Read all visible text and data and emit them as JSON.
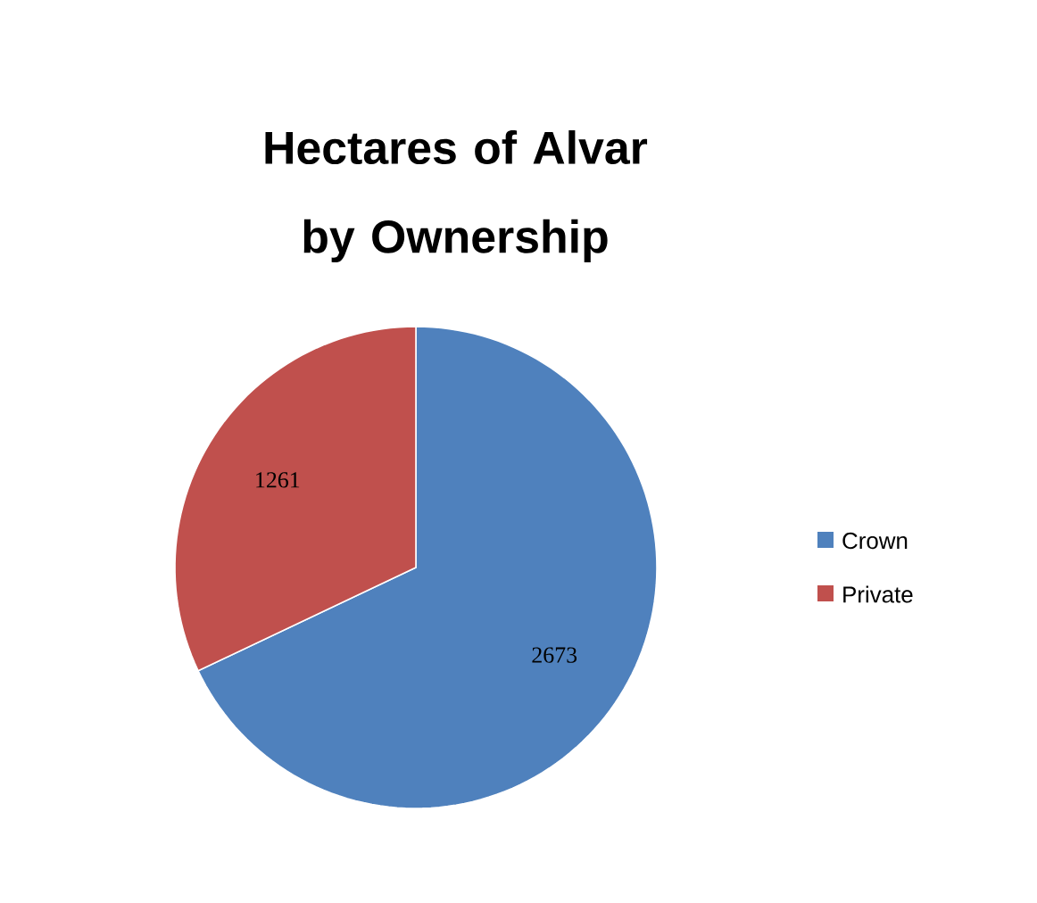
{
  "chart_data": {
    "type": "pie",
    "title": "Hectares of Alvar by Ownership",
    "categories": [
      "Crown",
      "Private"
    ],
    "values": [
      2673,
      1261
    ],
    "colors": [
      "#4f81bd",
      "#c0504d"
    ],
    "data_labels": true,
    "legend": "right"
  }
}
